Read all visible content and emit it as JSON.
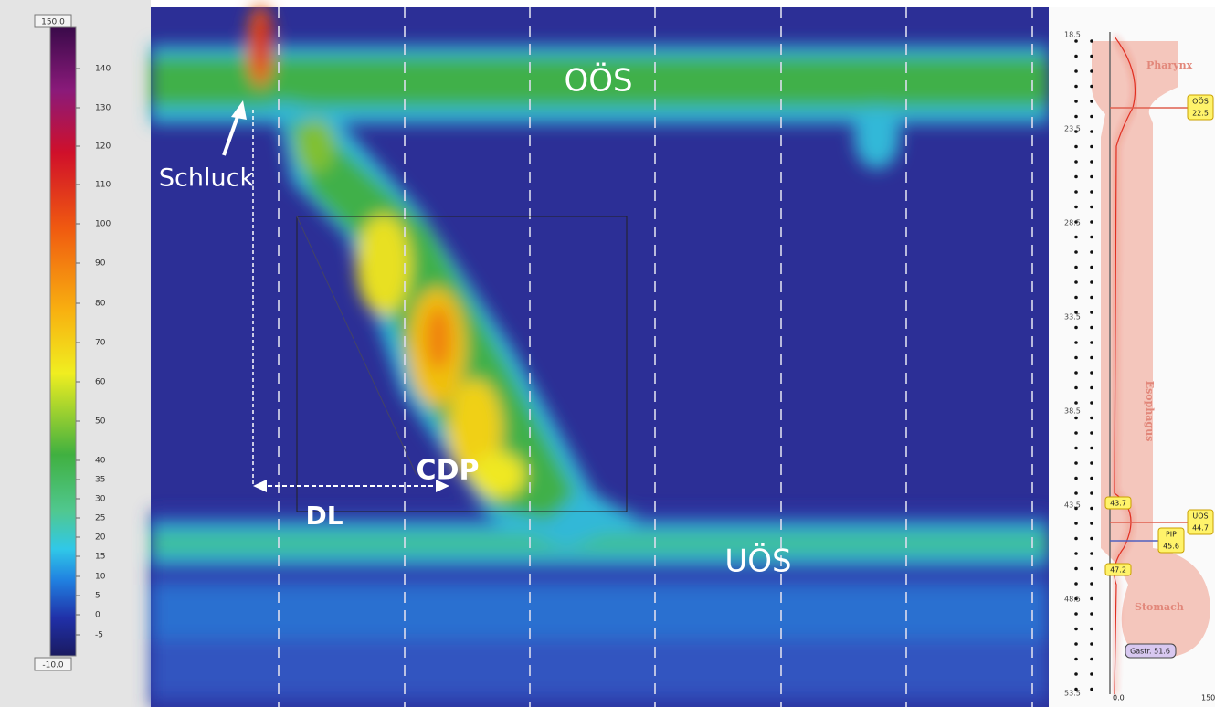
{
  "colorbar": {
    "max": "150.0",
    "min": "-10.0",
    "ticks": [
      "140",
      "130",
      "120",
      "110",
      "100",
      "90",
      "80",
      "70",
      "60",
      "50",
      "40",
      "35",
      "30",
      "25",
      "20",
      "15",
      "10",
      "5",
      "0",
      "-5"
    ]
  },
  "annotations": {
    "upper_sphincter": "OÖS",
    "swallow": "Schluck",
    "cdp": "CDP",
    "dl": "DL",
    "lower_sphincter": "UÖS"
  },
  "anatomy": {
    "depths": [
      "18.5",
      "23.5",
      "28.5",
      "33.5",
      "38.5",
      "43.5",
      "48.5",
      "53.5"
    ],
    "regions": [
      "Pharynx",
      "Esophagus",
      "Stomach"
    ],
    "markers": [
      {
        "name": "OÖS",
        "value": "22.5"
      },
      {
        "name": "UÖS",
        "value": "44.7"
      },
      {
        "name": "PIP",
        "value": "45.6"
      }
    ],
    "levels": [
      "43.7",
      "47.2"
    ],
    "gastric": "Gastr. 51.6",
    "axis": [
      "0.0",
      "150"
    ]
  }
}
